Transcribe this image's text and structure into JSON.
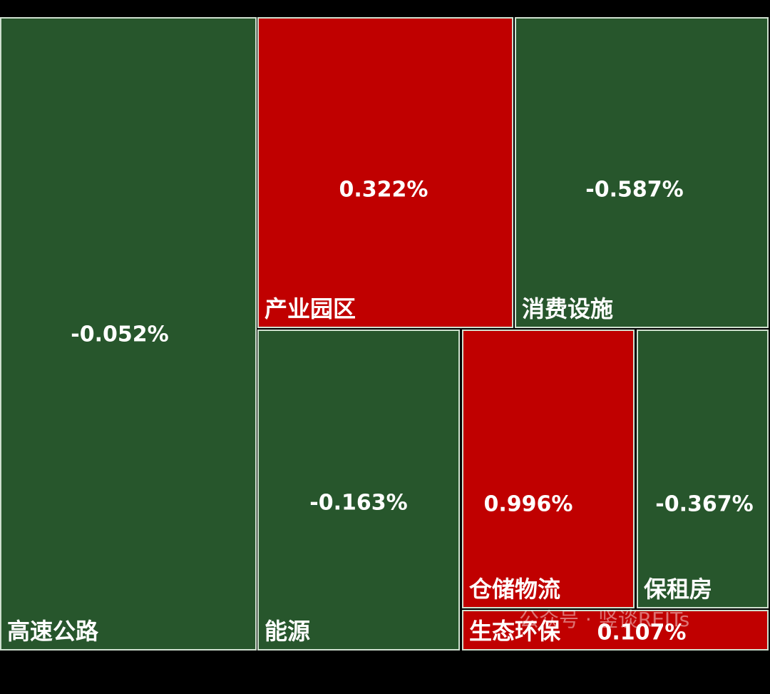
{
  "chart_data": {
    "type": "treemap",
    "categories": [
      "高速公路",
      "产业园区",
      "消费设施",
      "能源",
      "仓储物流",
      "保租房",
      "生态环保"
    ],
    "values": [
      -0.052,
      0.322,
      -0.587,
      -0.163,
      0.996,
      -0.367,
      0.107
    ],
    "value_labels": [
      "-0.052%",
      "0.322%",
      "-0.587%",
      "-0.163%",
      "0.996%",
      "-0.367%",
      "0.107%"
    ],
    "colors": [
      "#27562c",
      "#c00000",
      "#27562c",
      "#27562c",
      "#c00000",
      "#27562c",
      "#c00000"
    ],
    "watermark": "公众号 · 竖谈REITs"
  }
}
